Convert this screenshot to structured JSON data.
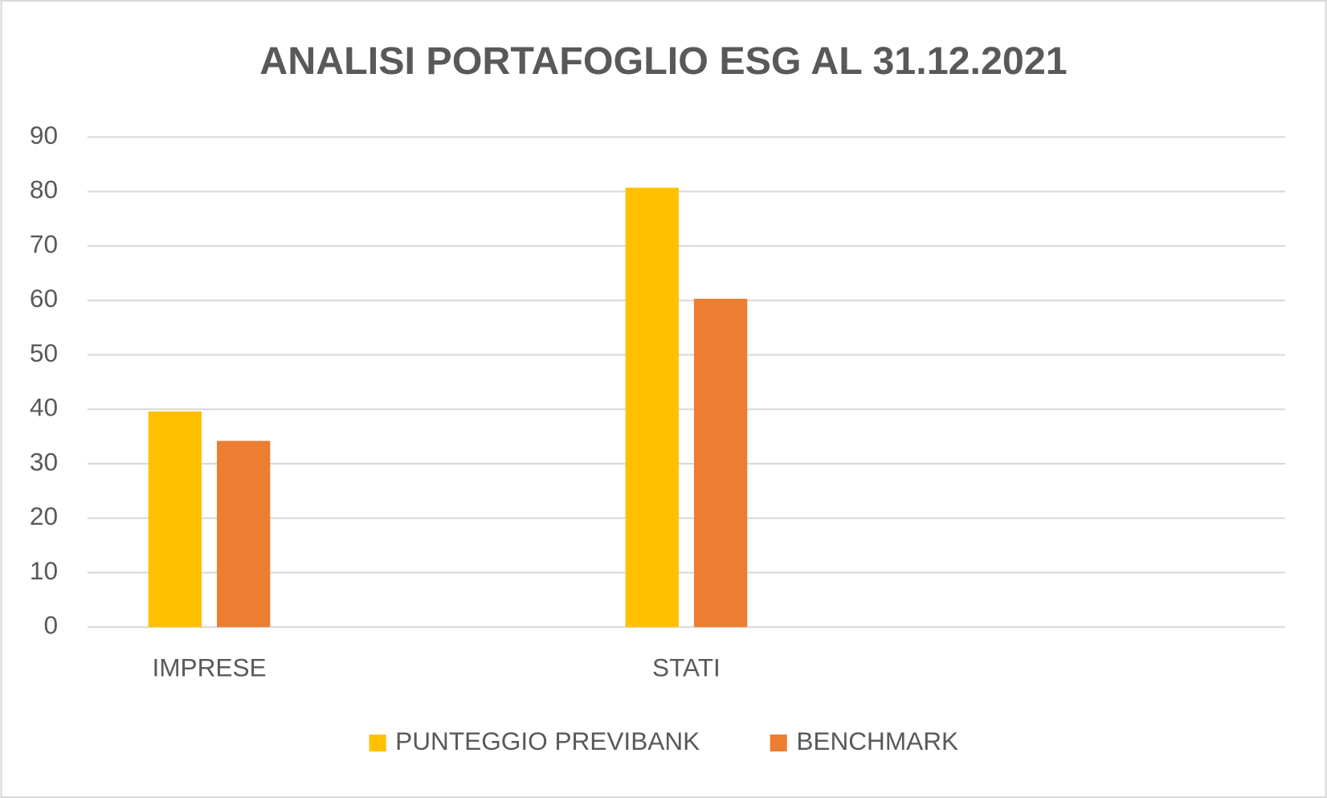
{
  "chart_data": {
    "type": "bar",
    "title": "ANALISI PORTAFOGLIO ESG AL 31.12.2021",
    "categories": [
      "IMPRESE",
      "STATI",
      null
    ],
    "series": [
      {
        "name": "PUNTEGGIO PREVIBANK",
        "color": "#ffc000",
        "values": [
          39.6,
          80.7,
          null
        ]
      },
      {
        "name": "BENCHMARK",
        "color": "#ed7d31",
        "values": [
          34.2,
          60.3,
          null
        ]
      }
    ],
    "ylim": [
      0,
      90
    ],
    "yticks": [
      0,
      10,
      20,
      30,
      40,
      50,
      60,
      70,
      80,
      90
    ],
    "grid": true,
    "legend": "bottom"
  }
}
